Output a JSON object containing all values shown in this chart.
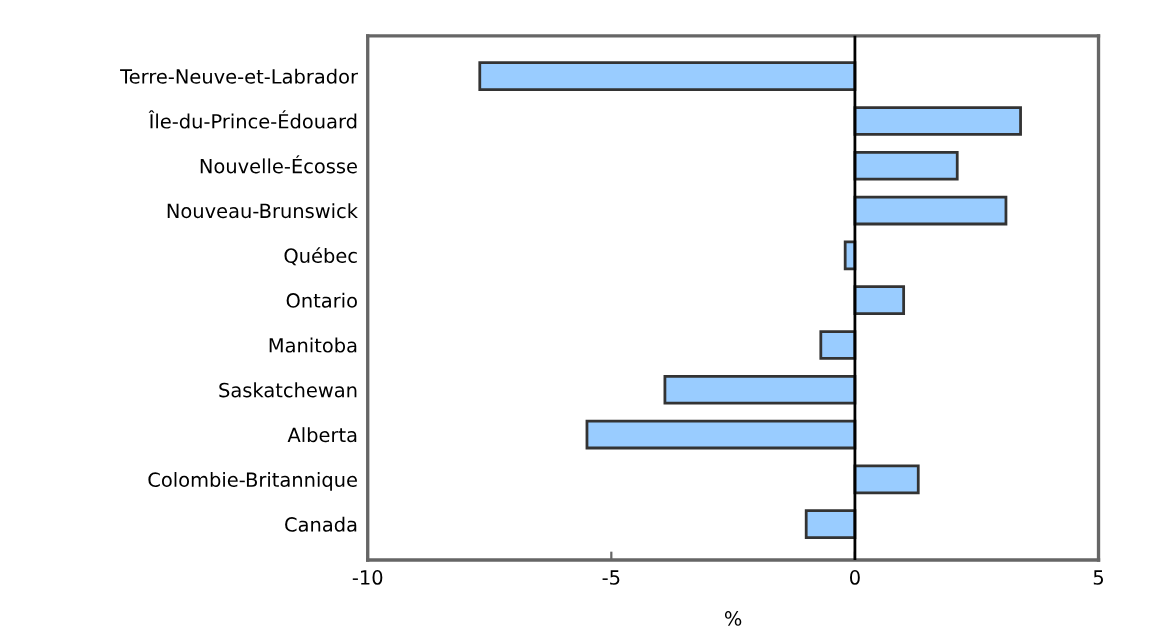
{
  "chart_data": {
    "type": "bar",
    "orientation": "horizontal",
    "xlabel": "%",
    "categories": [
      "Terre-Neuve-et-Labrador",
      "Île-du-Prince-Édouard",
      "Nouvelle-Écosse",
      "Nouveau-Brunswick",
      "Québec",
      "Ontario",
      "Manitoba",
      "Saskatchewan",
      "Alberta",
      "Colombie-Britannique",
      "Canada"
    ],
    "values": [
      -7.7,
      3.4,
      2.1,
      3.1,
      -0.2,
      1.0,
      -0.7,
      -3.9,
      -5.5,
      1.3,
      -1.0
    ],
    "color": "#99ccff",
    "xlim": [
      -10,
      5
    ],
    "xticks": [
      -10,
      -5,
      0,
      5
    ],
    "ref_lines": [
      {
        "axis": "x",
        "value": 0,
        "color": "#000000"
      }
    ],
    "grid": false,
    "legend": false
  }
}
